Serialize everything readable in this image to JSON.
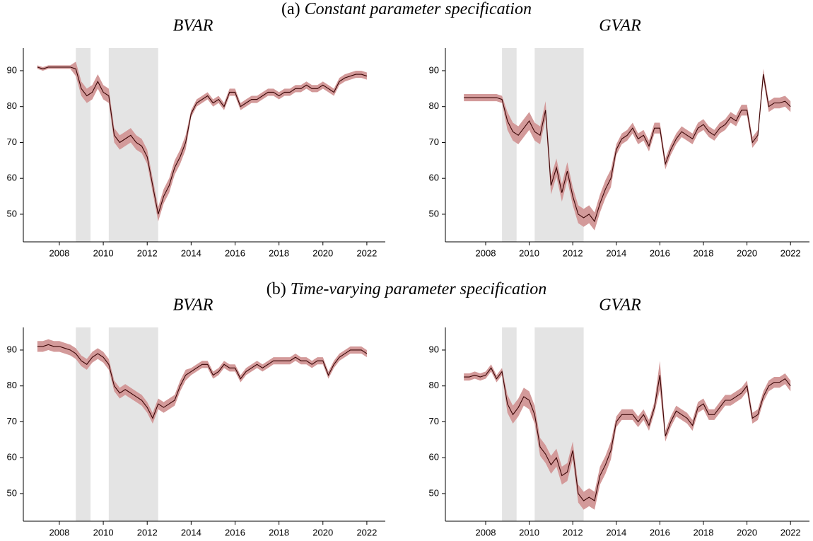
{
  "sections": [
    {
      "label": "(a)",
      "title": "Constant parameter specification"
    },
    {
      "label": "(b)",
      "title": "Time-varying parameter specification"
    }
  ],
  "chart_data": [
    {
      "type": "line",
      "title": "BVAR",
      "color": "#3a0505",
      "band_color": "#d39a9a",
      "shade_color": "#e4e4e4",
      "x": [
        2007,
        2007.25,
        2007.5,
        2007.75,
        2008,
        2008.25,
        2008.5,
        2008.75,
        2009,
        2009.25,
        2009.5,
        2009.75,
        2010,
        2010.25,
        2010.5,
        2010.75,
        2011,
        2011.25,
        2011.5,
        2011.75,
        2012,
        2012.25,
        2012.5,
        2012.75,
        2013,
        2013.25,
        2013.5,
        2013.75,
        2014,
        2014.25,
        2014.5,
        2014.75,
        2015,
        2015.25,
        2015.5,
        2015.75,
        2016,
        2016.25,
        2016.5,
        2016.75,
        2017,
        2017.25,
        2017.5,
        2017.75,
        2018,
        2018.25,
        2018.5,
        2018.75,
        2019,
        2019.25,
        2019.5,
        2019.75,
        2020,
        2020.25,
        2020.5,
        2020.75,
        2021,
        2021.25,
        2021.5,
        2021.75,
        2022
      ],
      "values": [
        91,
        90.5,
        91,
        91,
        91,
        91,
        91,
        90.5,
        85,
        83,
        84,
        87,
        84,
        83,
        72,
        70,
        71,
        72,
        70,
        69,
        66,
        58,
        50,
        55,
        58,
        63,
        66,
        70,
        78,
        81,
        82,
        83,
        81,
        82,
        80,
        84,
        84,
        80,
        81,
        82,
        82,
        83,
        84,
        84,
        83,
        84,
        84,
        85,
        85,
        86,
        85,
        85,
        86,
        85,
        84,
        87,
        88,
        88.5,
        89,
        89,
        88.5
      ],
      "lower": [
        90.5,
        90,
        90.5,
        90.5,
        90.5,
        90.5,
        90.5,
        88.5,
        83,
        81,
        82,
        85,
        82,
        81,
        70,
        68,
        69,
        70,
        68,
        67,
        64,
        56,
        48,
        53,
        56,
        61,
        64,
        68,
        77,
        80,
        81,
        82,
        80,
        81,
        79,
        83,
        83,
        79,
        80,
        81,
        81,
        82,
        83,
        83,
        82,
        83,
        83,
        84,
        84,
        85,
        84,
        84,
        85,
        84,
        83,
        86,
        87,
        87.5,
        88,
        88,
        87.5
      ],
      "upper": [
        91.5,
        91,
        91.5,
        91.5,
        91.5,
        91.5,
        91.5,
        92.5,
        87,
        85,
        86,
        89,
        86,
        85,
        74,
        72,
        73,
        74,
        72,
        71,
        68,
        60,
        52,
        57,
        60,
        65,
        68,
        72,
        79,
        82,
        83,
        84,
        82,
        83,
        81,
        85,
        85,
        81,
        82,
        83,
        83,
        84,
        85,
        85,
        84,
        85,
        85,
        86,
        86,
        87,
        86,
        86,
        87,
        86,
        85,
        88,
        89,
        89.5,
        90,
        90,
        89.5
      ],
      "shaded": [
        [
          2008.75,
          2009.42
        ],
        [
          2010.25,
          2012.5
        ]
      ],
      "xlim": [
        2006.36,
        2022.84
      ],
      "ylim": [
        42.3,
        96.3
      ],
      "xticks": [
        2008,
        2010,
        2012,
        2014,
        2016,
        2018,
        2020,
        2022
      ],
      "yticks": [
        50,
        60,
        70,
        80,
        90
      ]
    },
    {
      "type": "line",
      "title": "GVAR",
      "color": "#3a0505",
      "band_color": "#d39a9a",
      "shade_color": "#e4e4e4",
      "x": [
        2007,
        2007.25,
        2007.5,
        2007.75,
        2008,
        2008.25,
        2008.5,
        2008.75,
        2009,
        2009.25,
        2009.5,
        2009.75,
        2010,
        2010.25,
        2010.5,
        2010.75,
        2011,
        2011.25,
        2011.5,
        2011.75,
        2012,
        2012.25,
        2012.5,
        2012.75,
        2013,
        2013.25,
        2013.5,
        2013.75,
        2014,
        2014.25,
        2014.5,
        2014.75,
        2015,
        2015.25,
        2015.5,
        2015.75,
        2016,
        2016.25,
        2016.5,
        2016.75,
        2017,
        2017.25,
        2017.5,
        2017.75,
        2018,
        2018.25,
        2018.5,
        2018.75,
        2019,
        2019.25,
        2019.5,
        2019.75,
        2020,
        2020.25,
        2020.5,
        2020.75,
        2021,
        2021.25,
        2021.5,
        2021.75,
        2022
      ],
      "values": [
        82.5,
        82.5,
        82.5,
        82.5,
        82.5,
        82.5,
        82.5,
        82,
        76,
        73,
        72,
        74,
        76,
        73,
        72,
        79,
        58,
        63,
        56,
        62,
        55,
        50,
        49,
        50,
        48,
        53,
        57,
        60,
        68,
        71,
        72,
        74,
        71,
        72,
        69,
        74,
        74,
        64,
        68,
        71,
        73,
        72,
        71,
        74,
        75,
        73,
        72,
        74,
        75,
        77,
        76,
        79,
        79,
        70,
        72,
        89,
        80,
        81,
        81,
        81.5,
        80
      ],
      "lower": [
        81.5,
        81.5,
        81.5,
        81.5,
        81.5,
        81.5,
        81.5,
        81,
        73.5,
        70.5,
        69.5,
        71.5,
        73.5,
        70.5,
        69.5,
        76.5,
        55.5,
        60.5,
        53.5,
        59.5,
        52.5,
        47.5,
        46.5,
        47.5,
        45.5,
        50.5,
        54.5,
        57.5,
        66.5,
        69.5,
        70.5,
        72.5,
        69.5,
        70.5,
        67.5,
        72.5,
        72.5,
        62.5,
        66.5,
        69.5,
        71.5,
        70.5,
        69.5,
        72.5,
        73.5,
        71.5,
        70.5,
        72.5,
        73.5,
        75.5,
        74.5,
        77.5,
        77.5,
        68.5,
        70.5,
        87.5,
        78.5,
        79.5,
        79.5,
        80,
        78.5
      ],
      "upper": [
        83.5,
        83.5,
        83.5,
        83.5,
        83.5,
        83.5,
        83.5,
        83,
        78.5,
        75.5,
        74.5,
        76.5,
        78.5,
        75.5,
        74.5,
        81.5,
        60.5,
        65.5,
        58.5,
        64.5,
        57.5,
        52.5,
        51.5,
        52.5,
        50.5,
        55.5,
        59.5,
        62.5,
        69.5,
        72.5,
        73.5,
        75.5,
        72.5,
        73.5,
        70.5,
        75.5,
        75.5,
        65.5,
        69.5,
        72.5,
        74.5,
        73.5,
        72.5,
        75.5,
        76.5,
        74.5,
        73.5,
        75.5,
        76.5,
        78.5,
        77.5,
        80.5,
        80.5,
        71.5,
        73.5,
        90.5,
        81.5,
        82.5,
        82.5,
        83,
        81.5
      ],
      "shaded": [
        [
          2008.75,
          2009.42
        ],
        [
          2010.25,
          2012.5
        ]
      ],
      "xlim": [
        2006.15,
        2022.87
      ],
      "ylim": [
        42.3,
        96.3
      ],
      "xticks": [
        2008,
        2010,
        2012,
        2014,
        2016,
        2018,
        2020,
        2022
      ],
      "yticks": [
        50,
        60,
        70,
        80,
        90
      ]
    },
    {
      "type": "line",
      "title": "BVAR",
      "color": "#3a0505",
      "band_color": "#d39a9a",
      "shade_color": "#e4e4e4",
      "x": [
        2007,
        2007.25,
        2007.5,
        2007.75,
        2008,
        2008.25,
        2008.5,
        2008.75,
        2009,
        2009.25,
        2009.5,
        2009.75,
        2010,
        2010.25,
        2010.5,
        2010.75,
        2011,
        2011.25,
        2011.5,
        2011.75,
        2012,
        2012.25,
        2012.5,
        2012.75,
        2013,
        2013.25,
        2013.5,
        2013.75,
        2014,
        2014.25,
        2014.5,
        2014.75,
        2015,
        2015.25,
        2015.5,
        2015.75,
        2016,
        2016.25,
        2016.5,
        2016.75,
        2017,
        2017.25,
        2017.5,
        2017.75,
        2018,
        2018.25,
        2018.5,
        2018.75,
        2019,
        2019.25,
        2019.5,
        2019.75,
        2020,
        2020.25,
        2020.5,
        2020.75,
        2021,
        2021.25,
        2021.5,
        2021.75,
        2022
      ],
      "values": [
        91,
        91,
        91.5,
        91,
        91,
        90.5,
        90,
        89,
        87,
        86,
        88,
        89,
        88,
        86,
        80,
        78,
        79,
        78,
        77,
        76,
        74,
        71,
        75,
        74,
        75,
        76,
        80,
        83,
        84,
        85,
        86,
        86,
        83,
        84,
        86,
        85,
        85,
        82,
        84,
        85,
        86,
        85,
        86,
        87,
        87,
        87,
        87,
        88,
        87,
        87,
        86,
        87,
        87,
        83,
        86,
        88,
        89,
        90,
        90,
        90,
        89
      ],
      "lower": [
        89.5,
        89.5,
        90,
        89.5,
        89.5,
        89,
        88.5,
        87.5,
        85.5,
        84.5,
        86.5,
        87.5,
        86.5,
        84.5,
        78.5,
        76.5,
        77.5,
        76.5,
        75.5,
        74.5,
        72.5,
        69.5,
        73.5,
        72.5,
        73.5,
        74.5,
        78.5,
        81.5,
        83,
        84,
        85,
        85,
        82,
        83,
        85,
        84,
        84,
        81,
        83,
        84,
        85,
        84,
        85,
        86,
        86,
        86,
        86,
        87,
        86,
        86,
        85,
        86,
        86,
        82,
        85,
        87,
        88,
        89,
        89,
        89,
        88
      ],
      "upper": [
        92.5,
        92.5,
        93,
        92.5,
        92.5,
        92,
        91.5,
        90.5,
        88.5,
        87.5,
        89.5,
        90.5,
        89.5,
        87.5,
        81.5,
        79.5,
        80.5,
        79.5,
        78.5,
        77.5,
        75.5,
        72.5,
        76.5,
        75.5,
        76.5,
        77.5,
        81.5,
        84.5,
        85,
        86,
        87,
        87,
        84,
        85,
        87,
        86,
        86,
        83,
        85,
        86,
        87,
        86,
        87,
        88,
        88,
        88,
        88,
        89,
        88,
        88,
        87,
        88,
        88,
        84,
        87,
        89,
        90,
        91,
        91,
        91,
        90
      ],
      "shaded": [
        [
          2008.75,
          2009.42
        ],
        [
          2010.25,
          2012.5
        ]
      ],
      "xlim": [
        2006.36,
        2022.84
      ],
      "ylim": [
        42.3,
        96.3
      ],
      "xticks": [
        2008,
        2010,
        2012,
        2014,
        2016,
        2018,
        2020,
        2022
      ],
      "yticks": [
        50,
        60,
        70,
        80,
        90
      ]
    },
    {
      "type": "line",
      "title": "GVAR",
      "color": "#3a0505",
      "band_color": "#d39a9a",
      "shade_color": "#e4e4e4",
      "x": [
        2007,
        2007.25,
        2007.5,
        2007.75,
        2008,
        2008.25,
        2008.5,
        2008.75,
        2009,
        2009.25,
        2009.5,
        2009.75,
        2010,
        2010.25,
        2010.5,
        2010.75,
        2011,
        2011.25,
        2011.5,
        2011.75,
        2012,
        2012.25,
        2012.5,
        2012.75,
        2013,
        2013.25,
        2013.5,
        2013.75,
        2014,
        2014.25,
        2014.5,
        2014.75,
        2015,
        2015.25,
        2015.5,
        2015.75,
        2016,
        2016.25,
        2016.5,
        2016.75,
        2017,
        2017.25,
        2017.5,
        2017.75,
        2018,
        2018.25,
        2018.5,
        2018.75,
        2019,
        2019.25,
        2019.5,
        2019.75,
        2020,
        2020.25,
        2020.5,
        2020.75,
        2021,
        2021.25,
        2021.5,
        2021.75,
        2022
      ],
      "values": [
        82.5,
        82.5,
        83,
        82.5,
        83,
        85,
        82,
        84,
        75,
        72,
        74,
        77,
        76,
        72,
        63,
        61,
        58,
        60,
        55,
        56,
        62,
        50,
        48,
        49,
        48,
        55,
        58,
        62,
        70,
        72,
        72,
        72,
        70,
        72,
        69,
        74,
        83,
        66,
        70,
        73,
        72,
        71,
        69,
        74,
        75,
        72,
        72,
        74,
        76,
        76,
        77,
        78,
        80,
        71,
        72,
        77,
        80,
        81,
        81,
        82,
        80
      ],
      "lower": [
        81.5,
        81.5,
        82,
        81.5,
        82,
        84,
        81,
        83,
        72.5,
        69.5,
        71.5,
        74.5,
        73.5,
        69.5,
        60.5,
        58.5,
        55.5,
        57.5,
        52.5,
        53.5,
        59.5,
        47.5,
        45.5,
        46.5,
        45.5,
        52.5,
        55.5,
        59.5,
        68.5,
        70.5,
        70.5,
        70.5,
        68.5,
        70.5,
        67.5,
        72.5,
        79,
        64.5,
        68.5,
        71.5,
        70.5,
        69.5,
        67.5,
        72.5,
        73.5,
        70.5,
        70.5,
        72.5,
        74.5,
        74.5,
        75.5,
        76.5,
        78.5,
        69.5,
        70.5,
        75.5,
        78.5,
        79.5,
        79.5,
        80.5,
        78.5
      ],
      "upper": [
        83.5,
        83.5,
        84,
        83.5,
        84,
        86,
        83,
        85,
        77.5,
        74.5,
        76.5,
        79.5,
        78.5,
        74.5,
        65.5,
        63.5,
        60.5,
        62.5,
        57.5,
        58.5,
        64.5,
        52.5,
        50.5,
        51.5,
        50.5,
        57.5,
        60.5,
        64.5,
        71.5,
        73.5,
        73.5,
        73.5,
        71.5,
        73.5,
        70.5,
        75.5,
        87,
        67.5,
        71.5,
        74.5,
        73.5,
        72.5,
        70.5,
        75.5,
        76.5,
        73.5,
        73.5,
        75.5,
        77.5,
        77.5,
        78.5,
        79.5,
        81.5,
        72.5,
        73.5,
        78.5,
        81.5,
        82.5,
        82.5,
        83.5,
        81.5
      ],
      "shaded": [
        [
          2008.75,
          2009.42
        ],
        [
          2010.25,
          2012.5
        ]
      ],
      "xlim": [
        2006.15,
        2022.87
      ],
      "ylim": [
        42.3,
        96.3
      ],
      "xticks": [
        2008,
        2010,
        2012,
        2014,
        2016,
        2018,
        2020,
        2022
      ],
      "yticks": [
        50,
        60,
        70,
        80,
        90
      ]
    }
  ]
}
